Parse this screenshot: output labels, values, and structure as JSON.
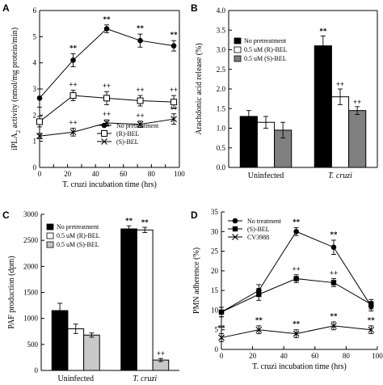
{
  "chart_data": [
    {
      "panel": "A",
      "type": "line",
      "xlabel": "T. cruzi incubation time (hrs)",
      "ylabel": "iPLA2 activity (nmol/mg protein/min)",
      "xlim": [
        0,
        100
      ],
      "ylim": [
        0,
        6
      ],
      "xticks": [
        0,
        10,
        20,
        30,
        40,
        50,
        60,
        70,
        80,
        90,
        100
      ],
      "yticks": [
        0,
        1,
        2,
        3,
        4,
        5,
        6
      ],
      "legend": "lower-right",
      "series": [
        {
          "name": "No pretreatment",
          "marker": "filled-circle",
          "x": [
            0,
            24,
            48,
            72,
            96
          ],
          "y": [
            2.65,
            4.1,
            5.3,
            4.85,
            4.65
          ],
          "err": [
            0.35,
            0.25,
            0.15,
            0.25,
            0.2
          ],
          "ann": [
            "",
            "**",
            "**",
            "**",
            "**"
          ]
        },
        {
          "name": "(R)-BEL",
          "marker": "open-square",
          "x": [
            0,
            24,
            48,
            72,
            96
          ],
          "y": [
            1.75,
            2.75,
            2.65,
            2.55,
            2.5
          ],
          "err": [
            0.2,
            0.2,
            0.25,
            0.2,
            0.25
          ],
          "ann": [
            "",
            "++",
            "++",
            "++",
            "++"
          ]
        },
        {
          "name": "(S)-BEL",
          "marker": "x",
          "x": [
            0,
            24,
            48,
            72,
            96
          ],
          "y": [
            1.2,
            1.35,
            1.7,
            1.65,
            1.85
          ],
          "err": [
            0.1,
            0.15,
            0.12,
            0.12,
            0.2
          ],
          "ann": [
            "",
            "++",
            "++",
            "++",
            "++"
          ]
        }
      ]
    },
    {
      "panel": "B",
      "type": "bar",
      "ylabel": "Arachdonic acid release (%)",
      "categories": [
        "Uninfected",
        "T. cruzi"
      ],
      "ylim": [
        0,
        4.0
      ],
      "yticks": [
        0,
        0.5,
        1.0,
        1.5,
        2.0,
        2.5,
        3.0,
        3.5,
        4.0
      ],
      "legend": "top-left",
      "series": [
        {
          "name": "No pretreatment",
          "fill": "#000000",
          "values": [
            1.3,
            3.1
          ],
          "err": [
            0.15,
            0.25
          ],
          "ann": [
            "",
            "**"
          ]
        },
        {
          "name": "0.5 uM (R)-BEL",
          "fill": "#ffffff",
          "values": [
            1.15,
            1.8
          ],
          "err": [
            0.15,
            0.2
          ],
          "ann": [
            "",
            "++"
          ]
        },
        {
          "name": "0.5 uM (S)-BEL",
          "fill": "#808080",
          "values": [
            0.95,
            1.45
          ],
          "err": [
            0.2,
            0.1
          ],
          "ann": [
            "",
            "++"
          ]
        }
      ]
    },
    {
      "panel": "C",
      "type": "bar",
      "ylabel": "PAF production (dpm)",
      "categories": [
        "Uninfected",
        "T. cruzi"
      ],
      "ylim": [
        0,
        3000
      ],
      "yticks": [
        0,
        500,
        1000,
        1500,
        2000,
        2500,
        3000
      ],
      "legend": "top-left",
      "series": [
        {
          "name": "No pretreatment",
          "fill": "#000000",
          "values": [
            1150,
            2720
          ],
          "err": [
            140,
            60
          ],
          "ann": [
            "",
            "**"
          ]
        },
        {
          "name": "0.5 uM (R)-BEL",
          "fill": "#ffffff",
          "values": [
            800,
            2700
          ],
          "err": [
            90,
            50
          ],
          "ann": [
            "",
            "**"
          ]
        },
        {
          "name": "0.5 uM (S)-BEL",
          "fill": "#c8c8c8",
          "values": [
            680,
            200
          ],
          "err": [
            40,
            30
          ],
          "ann": [
            "",
            "++"
          ]
        }
      ]
    },
    {
      "panel": "D",
      "type": "line",
      "xlabel": "T. cruzi incubation time (hrs)",
      "ylabel": "PMN adherence (%)",
      "xlim": [
        0,
        100
      ],
      "ylim": [
        0,
        35
      ],
      "xticks": [
        0,
        20,
        40,
        60,
        80,
        100
      ],
      "yticks": [
        0,
        5,
        10,
        15,
        20,
        25,
        30,
        35
      ],
      "legend": "top-left",
      "series": [
        {
          "name": "No treatment",
          "marker": "filled-circle",
          "x": [
            0,
            24,
            48,
            72,
            96
          ],
          "y": [
            9.5,
            15,
            30,
            26,
            11
          ],
          "err": [
            1.2,
            1.5,
            1.0,
            1.8,
            1.2
          ],
          "ann": [
            "",
            "",
            "**",
            "**",
            ""
          ]
        },
        {
          "name": "(S)-BEL",
          "marker": "filled-square",
          "x": [
            0,
            24,
            48,
            72,
            96
          ],
          "y": [
            9.5,
            14,
            18,
            17,
            11.5
          ],
          "err": [
            1.2,
            1.5,
            1.0,
            1.0,
            1.2
          ],
          "ann": [
            "",
            "",
            "++",
            "++",
            ""
          ]
        },
        {
          "name": "CV3988",
          "marker": "x",
          "x": [
            0,
            24,
            48,
            72,
            96
          ],
          "y": [
            3,
            5,
            4,
            6,
            5
          ],
          "err": [
            1.0,
            1.0,
            1.0,
            1.0,
            1.0
          ],
          "ann": [
            "**",
            "**",
            "**",
            "**",
            "**"
          ]
        }
      ]
    }
  ]
}
